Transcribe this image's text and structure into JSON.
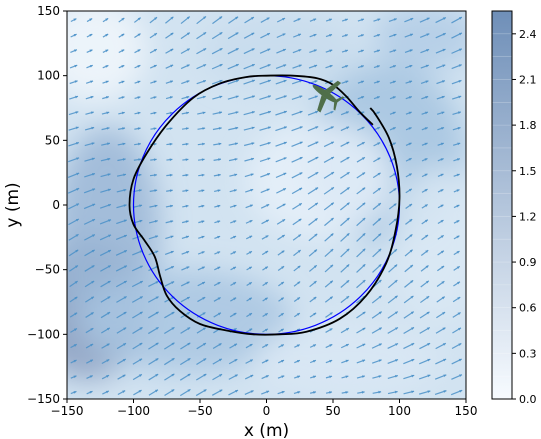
{
  "chart_data": {
    "type": "contour-quiver",
    "title": "",
    "xlabel": "x (m)",
    "ylabel": "y (m)",
    "xlim": [
      -150,
      150
    ],
    "ylim": [
      -150,
      150
    ],
    "xticks": [
      -150,
      -100,
      -50,
      0,
      50,
      100,
      150
    ],
    "yticks": [
      -150,
      -100,
      -50,
      0,
      50,
      100,
      150
    ],
    "colorbar": {
      "range": [
        0.0,
        2.55
      ],
      "ticks": [
        0.0,
        0.3,
        0.6,
        0.9,
        1.2,
        1.5,
        1.8,
        2.1,
        2.4
      ],
      "tick_labels": [
        "0.0",
        "0.3",
        "0.6",
        "0.9",
        "1.2",
        "1.5",
        "1.8",
        "2.1",
        "2.4"
      ],
      "color_low": "#f7fbff",
      "color_high": "#6f8fb8"
    },
    "field": {
      "arrow_color": "#4a90c8",
      "arrow_direction_deg": 25
    },
    "series": [
      {
        "name": "reference circle",
        "color": "#0000ff",
        "shape": "circle",
        "center": [
          0,
          0
        ],
        "radius": 100
      },
      {
        "name": "trajectory",
        "color": "#000000",
        "x": [
          80,
          70,
          60,
          50,
          38,
          20,
          0,
          -15,
          -35,
          -55,
          -75,
          -90,
          -100,
          -103,
          -100,
          -92,
          -84,
          -80,
          -75,
          -65,
          -50,
          -30,
          -10,
          10,
          30,
          55,
          75,
          90,
          97,
          100,
          98,
          92,
          82,
          78
        ],
        "y": [
          62,
          72,
          84,
          93,
          98,
          100,
          100,
          99,
          94,
          83,
          62,
          40,
          20,
          0,
          -15,
          -27,
          -40,
          -55,
          -70,
          -82,
          -92,
          -97,
          -100,
          -100,
          -98,
          -88,
          -70,
          -45,
          -20,
          5,
          30,
          52,
          70,
          75
        ]
      }
    ],
    "aircraft": {
      "icon": "airplane-icon",
      "color": "#4f6f4a",
      "x": 44,
      "y": 86,
      "heading_deg": -145
    }
  }
}
